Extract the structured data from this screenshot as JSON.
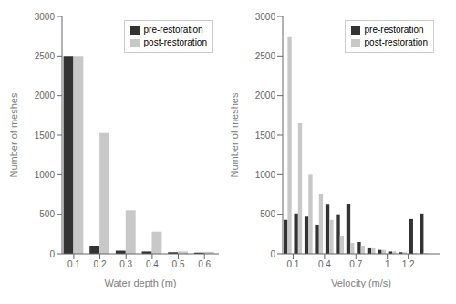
{
  "chart_data": [
    {
      "type": "bar",
      "x": [
        0.1,
        0.2,
        0.3,
        0.4,
        0.5,
        0.6
      ],
      "series": [
        {
          "name": "pre-restoration",
          "color": "#333333",
          "values": [
            2500,
            100,
            40,
            30,
            20,
            15
          ]
        },
        {
          "name": "post-restoration",
          "color": "#c8c8c8",
          "values": [
            2500,
            1525,
            550,
            280,
            30,
            25
          ]
        }
      ],
      "xlabel": "Water depth (m)",
      "ylabel": "Number of meshes",
      "xlim": [
        0.055,
        0.655
      ],
      "xticks": [
        0.1,
        0.2,
        0.3,
        0.4,
        0.5,
        0.6
      ],
      "ylim": [
        0,
        3000
      ],
      "yticks": [
        0,
        500,
        1000,
        1500,
        2000,
        2500,
        3000
      ],
      "legend": "upper right",
      "grid": false
    },
    {
      "type": "bar",
      "x": [
        0.05,
        0.15,
        0.25,
        0.35,
        0.45,
        0.55,
        0.65,
        0.75,
        0.85,
        0.95,
        1.05,
        1.15,
        1.25,
        1.35
      ],
      "series": [
        {
          "name": "pre-restoration",
          "color": "#333333",
          "values": [
            430,
            510,
            470,
            370,
            620,
            500,
            630,
            150,
            70,
            50,
            30,
            20,
            440,
            510
          ]
        },
        {
          "name": "post-restoration",
          "color": "#c8c8c8",
          "values": [
            2750,
            1650,
            1000,
            750,
            430,
            230,
            140,
            100,
            70,
            50,
            30,
            20,
            10,
            10
          ]
        }
      ],
      "xlabel": "Velocity (m/s)",
      "ylabel": "Number of meshes",
      "xlim": [
        0.0,
        1.5
      ],
      "xticks": [
        0.1,
        0.4,
        0.7,
        1.0,
        1.2
      ],
      "ylim": [
        0,
        3000
      ],
      "yticks": [
        0,
        500,
        1000,
        1500,
        2000,
        2500,
        3000
      ],
      "legend": "upper right",
      "grid": false
    }
  ]
}
